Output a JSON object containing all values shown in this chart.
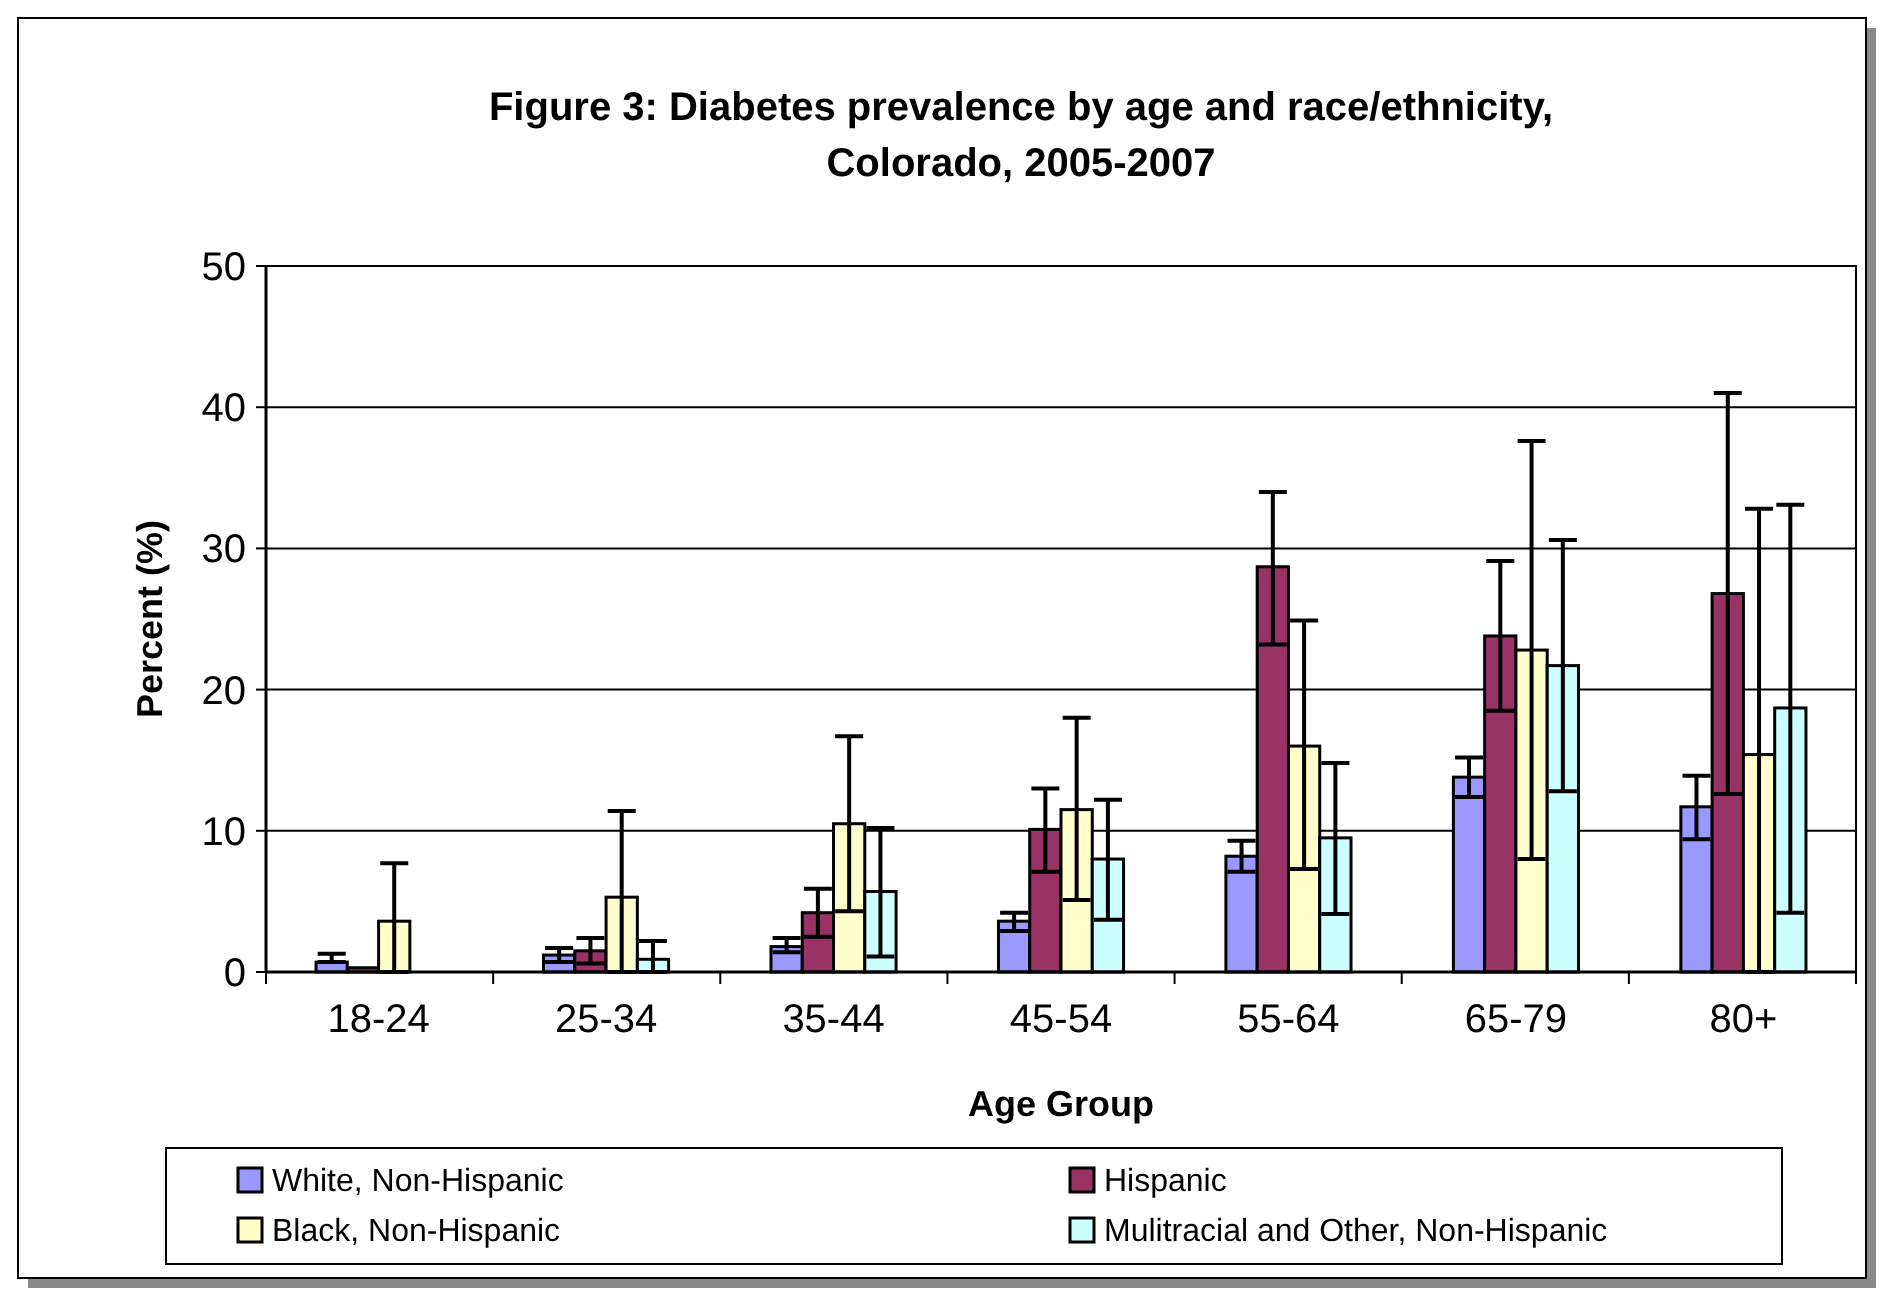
{
  "chart_data": {
    "type": "bar",
    "title": "Figure 3: Diabetes prevalence by age and race/ethnicity, Colorado, 2005-2007",
    "xlabel": "Age Group",
    "ylabel": "Percent (%)",
    "categories": [
      "18-24",
      "25-34",
      "35-44",
      "45-54",
      "55-64",
      "65-79",
      "80+"
    ],
    "ylim": [
      0,
      50
    ],
    "yticks": [
      0,
      10,
      20,
      30,
      40,
      50
    ],
    "grid": "y",
    "legend": "bottom",
    "series": [
      {
        "name": "White, Non-Hispanic",
        "color": "#9999ff",
        "values": [
          0.7,
          1.2,
          1.8,
          3.6,
          8.2,
          13.8,
          11.7
        ],
        "errors": [
          [
            0.7,
            1.3
          ],
          [
            0.7,
            1.7
          ],
          [
            1.4,
            2.4
          ],
          [
            2.9,
            4.2
          ],
          [
            7.1,
            9.3
          ],
          [
            12.4,
            15.2
          ],
          [
            9.4,
            13.9
          ]
        ]
      },
      {
        "name": "Hispanic",
        "color": "#993366",
        "values": [
          0.3,
          1.5,
          4.2,
          10.1,
          28.7,
          23.8,
          26.8
        ],
        "errors": [
          null,
          [
            0.6,
            2.4
          ],
          [
            2.5,
            5.9
          ],
          [
            7.1,
            13
          ],
          [
            23.2,
            34
          ],
          [
            18.5,
            29.1
          ],
          [
            12.6,
            41
          ]
        ]
      },
      {
        "name": "Black, Non-Hispanic",
        "color": "#ffffcc",
        "values": [
          3.6,
          5.3,
          10.5,
          11.5,
          16,
          22.8,
          15.4
        ],
        "errors": [
          [
            0,
            7.7
          ],
          [
            0,
            11.4
          ],
          [
            4.3,
            16.7
          ],
          [
            5.1,
            18
          ],
          [
            7.3,
            24.9
          ],
          [
            8,
            37.6
          ],
          [
            0,
            32.8
          ]
        ]
      },
      {
        "name": "Mulitracial and Other, Non-Hispanic",
        "color": "#ccffff",
        "values": [
          null,
          0.9,
          5.7,
          8,
          9.5,
          21.7,
          18.7
        ],
        "errors": [
          null,
          [
            0,
            2.2
          ],
          [
            1.1,
            10.2
          ],
          [
            3.7,
            12.2
          ],
          [
            4.1,
            14.8
          ],
          [
            12.8,
            30.6
          ],
          [
            4.2,
            33.1
          ]
        ]
      }
    ]
  }
}
